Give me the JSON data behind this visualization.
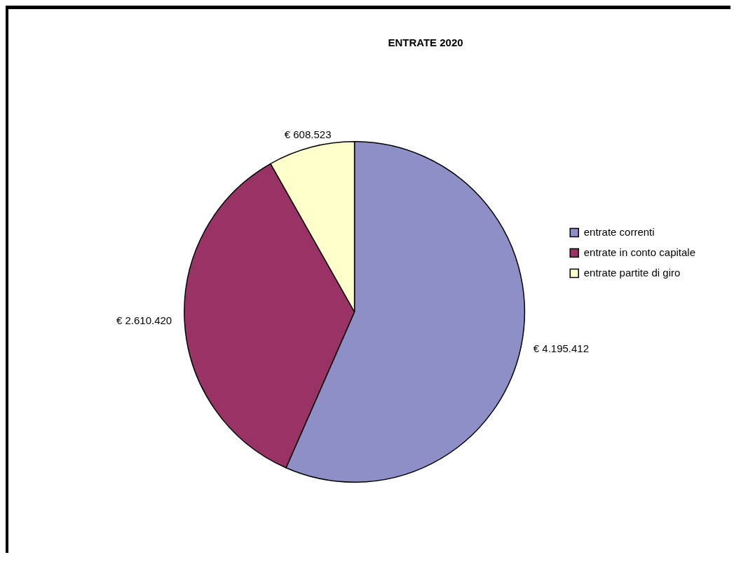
{
  "chart_data": {
    "type": "pie",
    "title": "ENTRATE 2020",
    "categories": [
      "entrate correnti",
      "entrate in conto capitale",
      "entrate partite di giro"
    ],
    "values": [
      4195412,
      2610420,
      608523
    ],
    "colors": [
      "#8f8fc8",
      "#993366",
      "#ffffcc"
    ],
    "value_labels": [
      "€ 4.195.412",
      "€ 2.610.420",
      "€ 608.523"
    ],
    "legend": "right"
  }
}
